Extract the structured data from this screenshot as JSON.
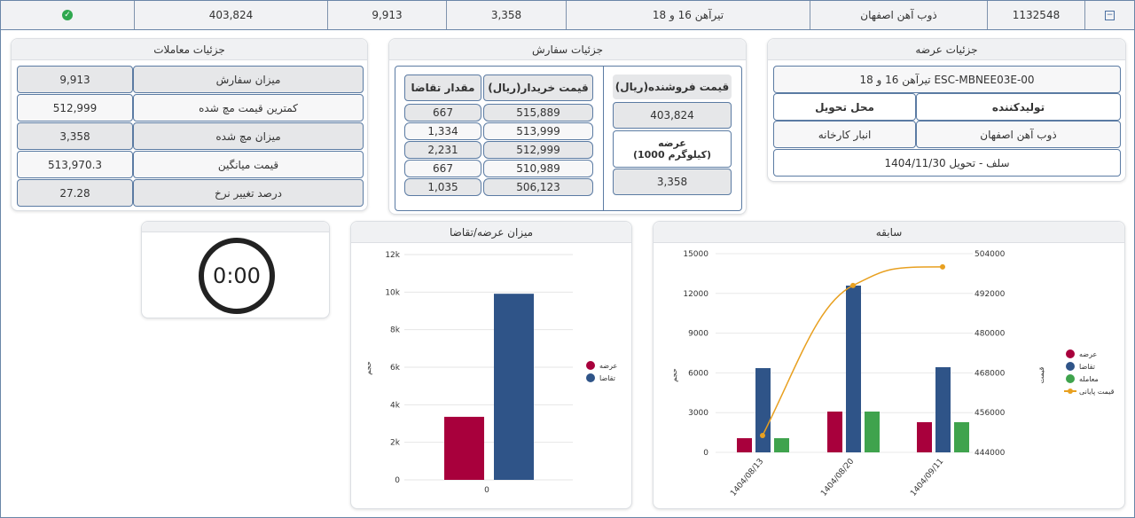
{
  "top_row": {
    "status_icon": "check-circle-icon",
    "seller_price": "403,824",
    "order_volume": "9,913",
    "supply": "3,358",
    "product": "تیرآهن 16 و 18",
    "producer": "ذوب آهن اصفهان",
    "code": "1132548",
    "toggle_icon": "minus-square-icon"
  },
  "trade_details": {
    "title": "جزئیات معاملات",
    "rows": [
      {
        "label": "میزان سفارش",
        "value": "9,913"
      },
      {
        "label": "کمترین قیمت مچ شده",
        "value": "512,999"
      },
      {
        "label": "میزان مچ شده",
        "value": "3,358"
      },
      {
        "label": "قیمت میانگین",
        "value": "513,970.3"
      },
      {
        "label": "درصد تغییر نرخ",
        "value": "27.28"
      }
    ]
  },
  "order_details": {
    "title": "جزئیات سفارش",
    "buy_price_header": "قیمت خریدار(ریال)",
    "demand_header": "مقدار تقاضا",
    "bids": [
      {
        "price": "515,889",
        "qty": "667"
      },
      {
        "price": "513,999",
        "qty": "1,334"
      },
      {
        "price": "512,999",
        "qty": "2,231"
      },
      {
        "price": "510,989",
        "qty": "667"
      },
      {
        "price": "506,123",
        "qty": "1,035"
      }
    ],
    "seller_price_header": "قیمت فروشنده(ریال)",
    "seller_price": "403,824",
    "supply_header": "عرضه",
    "supply_unit": "(1000 کیلوگرم)",
    "supply": "3,358"
  },
  "supply_details": {
    "title": "جزئیات عرضه",
    "product_code": "تیرآهن 16 و 18 ESC-MBNEE03E-00",
    "producer_header": "تولیدکننده",
    "location_header": "محل تحویل",
    "producer": "ذوب آهن اصفهان",
    "location": "انبار کارخانه",
    "delivery": "سلف - تحویل 1404/11/30"
  },
  "timer": {
    "value": "0:00"
  },
  "colors": {
    "supply": "#a8003c",
    "demand": "#2f5488",
    "trade": "#3fa34d",
    "price": "#e8a020"
  },
  "chart_data": [
    {
      "type": "bar",
      "title": "میزان عرضه/تقاضا",
      "categories": [
        "0"
      ],
      "ylabel": "حجم",
      "ylim": [
        0,
        12000
      ],
      "yticks": [
        "0",
        "2k",
        "4k",
        "6k",
        "8k",
        "10k",
        "12k"
      ],
      "grid": true,
      "legend": "right",
      "series": [
        {
          "name": "عرضه",
          "values": [
            3358
          ]
        },
        {
          "name": "تقاضا",
          "values": [
            9913
          ]
        }
      ]
    },
    {
      "type": "bar+line",
      "title": "سابقه",
      "categories": [
        "1404/08/13",
        "1404/08/20",
        "1404/09/11"
      ],
      "ylabel": "حجم",
      "y2label": "قیمت",
      "ylim": [
        0,
        15000
      ],
      "y2lim": [
        444000,
        504000
      ],
      "yticks": [
        "0",
        "3000",
        "6000",
        "9000",
        "12000",
        "15000"
      ],
      "y2ticks": [
        "444000",
        "456000",
        "468000",
        "480000",
        "492000",
        "504000"
      ],
      "grid": true,
      "legend": "right",
      "series": [
        {
          "name": "عرضه",
          "values": [
            1070,
            3080,
            2280
          ]
        },
        {
          "name": "تقاضا",
          "values": [
            6360,
            12590,
            6430
          ]
        },
        {
          "name": "معامله",
          "values": [
            1070,
            3080,
            2280
          ]
        },
        {
          "name": "قیمت پایانی",
          "type": "line",
          "values": [
            449100,
            494400,
            500000
          ]
        }
      ]
    }
  ]
}
